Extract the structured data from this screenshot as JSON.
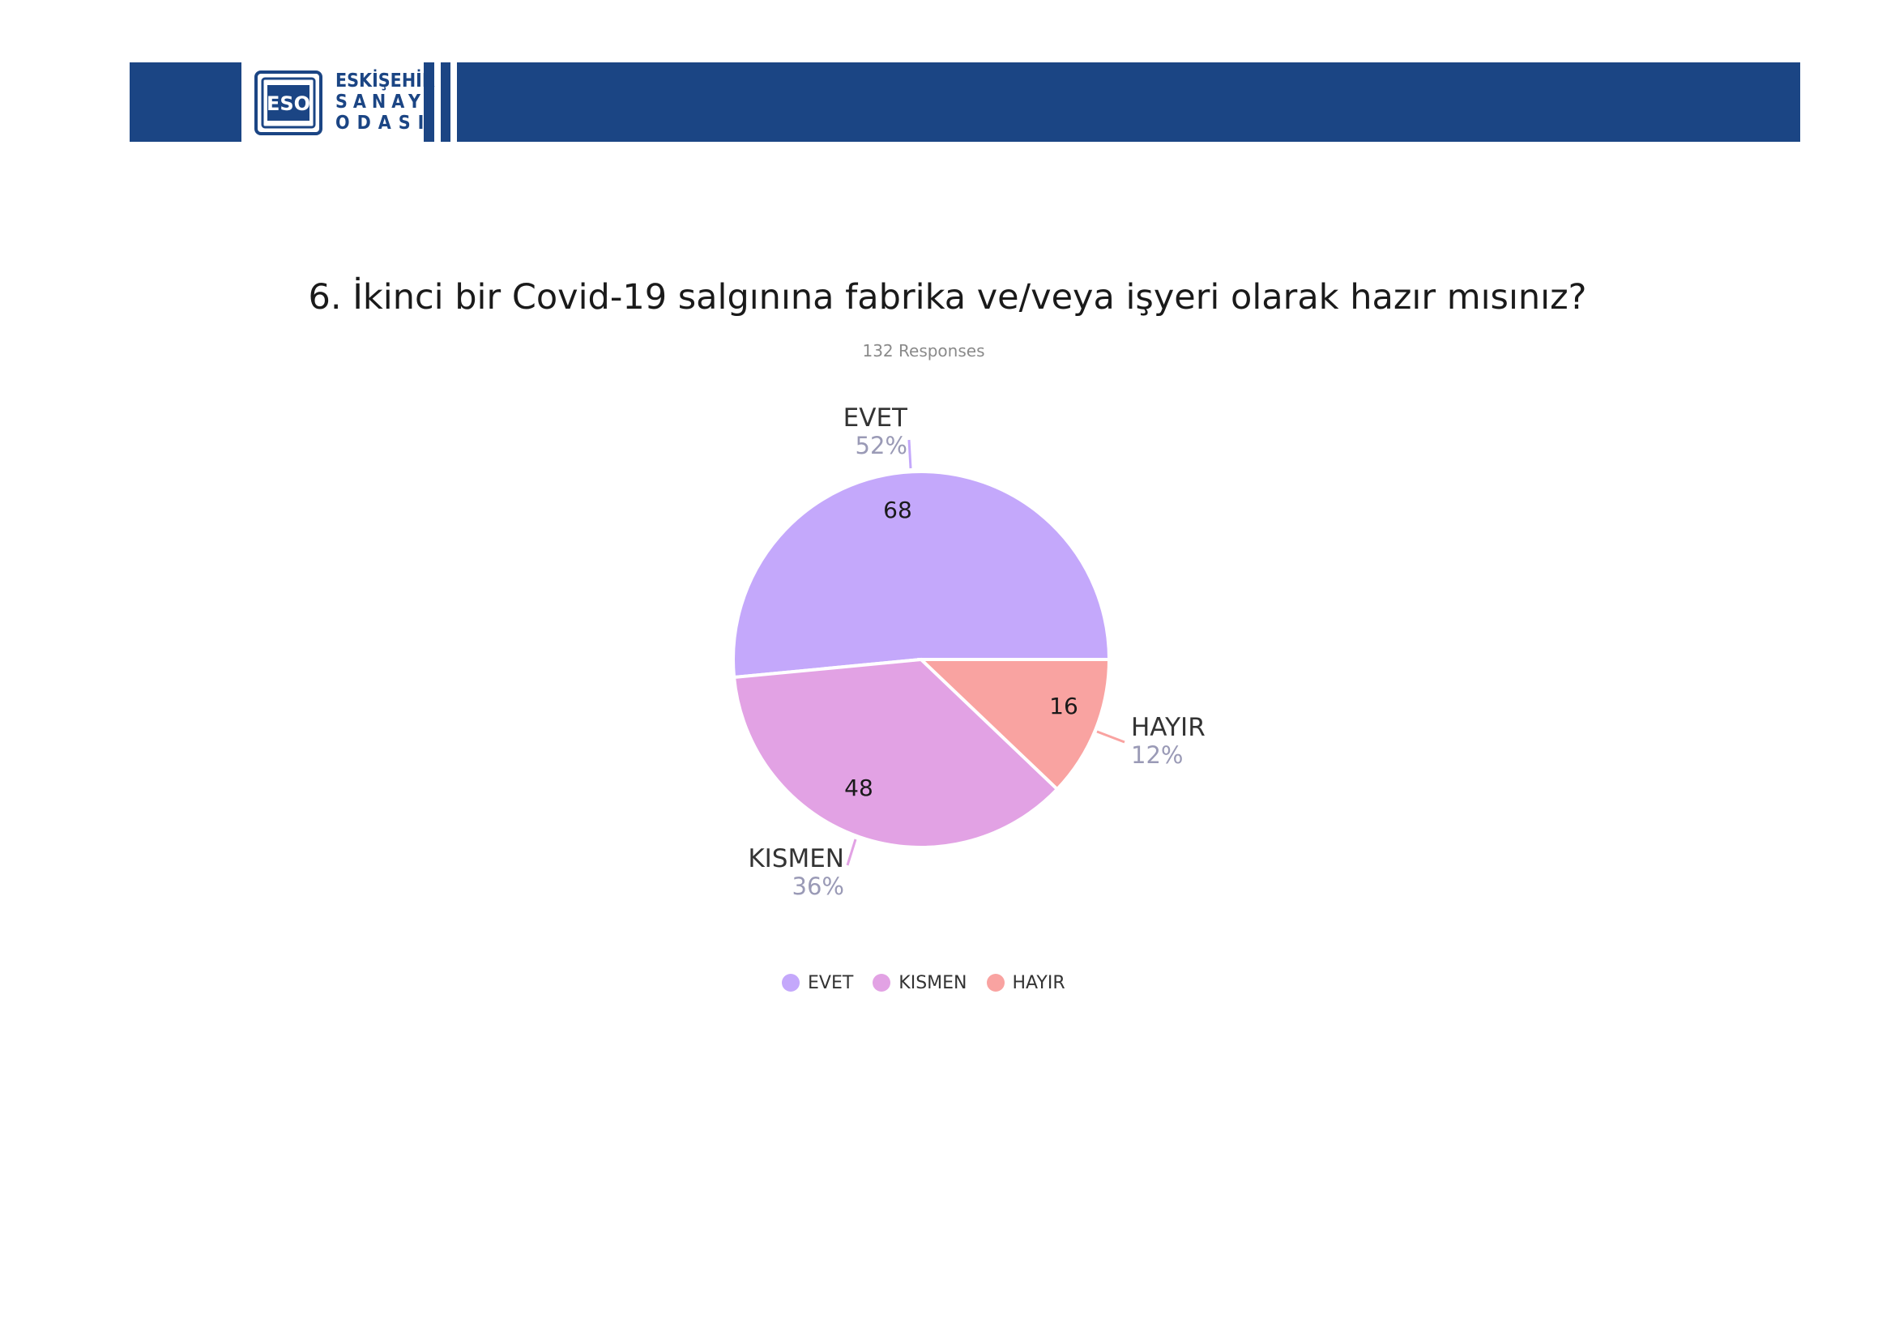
{
  "header": {
    "logo": {
      "abbr": "ESO",
      "line1": "ESKİŞEHİR",
      "line2": "SANAYİ",
      "line3": "ODASI"
    },
    "bar_color": "#1b4584"
  },
  "question": {
    "title": "6. İkinci bir Covid-19 salgınına fabrika ve/veya işyeri olarak hazır mısınız?",
    "responses": "132 Responses"
  },
  "chart_data": {
    "type": "pie",
    "title": "6. İkinci bir Covid-19 salgınına fabrika ve/veya işyeri olarak hazır mısınız?",
    "subtitle": "132 Responses",
    "total": 132,
    "slices": [
      {
        "label": "EVET",
        "value": 68,
        "percent": "52%",
        "color": "#c4a8fb"
      },
      {
        "label": "KISMEN",
        "value": 48,
        "percent": "36%",
        "color": "#e2a2e4"
      },
      {
        "label": "HAYIR",
        "value": 16,
        "percent": "12%",
        "color": "#f9a3a1"
      }
    ],
    "legend": [
      "EVET",
      "KISMEN",
      "HAYIR"
    ],
    "legend_position": "bottom"
  }
}
